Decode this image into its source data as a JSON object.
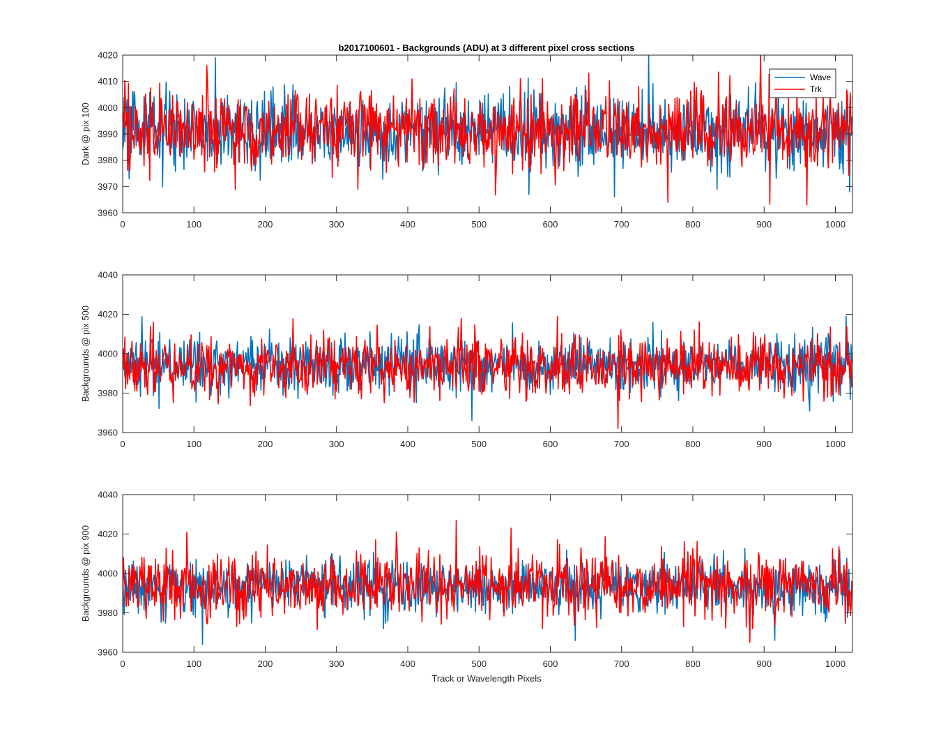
{
  "figure_title": "b2017100601 - Backgrounds (ADU) at 3 different pixel cross sections",
  "xlabel": "Track or Wavelength Pixels",
  "colors": {
    "wave": "#0072BD",
    "trk": "#FF0000",
    "axes": "#262626"
  },
  "chart_data": [
    {
      "type": "line",
      "title": "b2017100601 - Backgrounds (ADU) at 3 different pixel cross sections",
      "xlabel": "",
      "ylabel": "Dark @ pix 100",
      "xlim": [
        0,
        1024
      ],
      "ylim": [
        3960,
        4020
      ],
      "x_ticks": [
        "0",
        "100",
        "200",
        "300",
        "400",
        "500",
        "600",
        "700",
        "800",
        "900",
        "1000"
      ],
      "y_ticks": [
        "3960",
        "3970",
        "3980",
        "3990",
        "4000",
        "4010",
        "4020"
      ],
      "grid": false,
      "legend": {
        "location": "top-right",
        "entries": [
          "Wave",
          "Trk"
        ]
      },
      "x": "pixel index 0..1023 (1024 points per series)",
      "series": [
        {
          "name": "Wave",
          "color": "#0072BD",
          "mean": 3991,
          "min": 3966,
          "max": 4020,
          "notable_points": [
            [
              130,
              4019
            ],
            [
              690,
              3966
            ],
            [
              738,
              4020
            ],
            [
              1020,
              3968
            ]
          ]
        },
        {
          "name": "Trk",
          "color": "#FF0000",
          "mean": 3992,
          "min": 3963,
          "max": 4020,
          "notable_points": [
            [
              118,
              4016
            ],
            [
              330,
              3969
            ],
            [
              765,
              3964
            ],
            [
              895,
              4020
            ],
            [
              960,
              3963
            ]
          ]
        }
      ]
    },
    {
      "type": "line",
      "title": "",
      "xlabel": "",
      "ylabel": "Backgrounds @ pix 500",
      "xlim": [
        0,
        1024
      ],
      "ylim": [
        3960,
        4040
      ],
      "x_ticks": [
        "0",
        "100",
        "200",
        "300",
        "400",
        "500",
        "600",
        "700",
        "800",
        "900",
        "1000"
      ],
      "y_ticks": [
        "3960",
        "3980",
        "4000",
        "4020",
        "4040"
      ],
      "grid": false,
      "series": [
        {
          "name": "Wave",
          "color": "#0072BD",
          "mean": 3994,
          "min": 3966,
          "max": 4019,
          "notable_points": [
            [
              490,
              3966
            ],
            [
              1015,
              4019
            ]
          ]
        },
        {
          "name": "Trk",
          "color": "#FF0000",
          "mean": 3994,
          "min": 3962,
          "max": 4019,
          "notable_points": [
            [
              475,
              4018
            ],
            [
              610,
              4019
            ],
            [
              695,
              3962
            ]
          ]
        }
      ]
    },
    {
      "type": "line",
      "title": "",
      "xlabel": "Track or Wavelength Pixels",
      "ylabel": "Backgrounds @ pix 900",
      "xlim": [
        0,
        1024
      ],
      "ylim": [
        3960,
        4040
      ],
      "x_ticks": [
        "0",
        "100",
        "200",
        "300",
        "400",
        "500",
        "600",
        "700",
        "800",
        "900",
        "1000"
      ],
      "y_ticks": [
        "3960",
        "3980",
        "4000",
        "4020",
        "4040"
      ],
      "grid": false,
      "series": [
        {
          "name": "Wave",
          "color": "#0072BD",
          "mean": 3993,
          "min": 3964,
          "max": 4015,
          "notable_points": [
            [
              112,
              3964
            ],
            [
              635,
              3966
            ],
            [
              915,
              3966
            ]
          ]
        },
        {
          "name": "Trk",
          "color": "#FF0000",
          "mean": 3994,
          "min": 3965,
          "max": 4027,
          "notable_points": [
            [
              90,
              4021
            ],
            [
              468,
              4027
            ],
            [
              545,
              4023
            ],
            [
              880,
              3965
            ]
          ]
        }
      ]
    }
  ]
}
